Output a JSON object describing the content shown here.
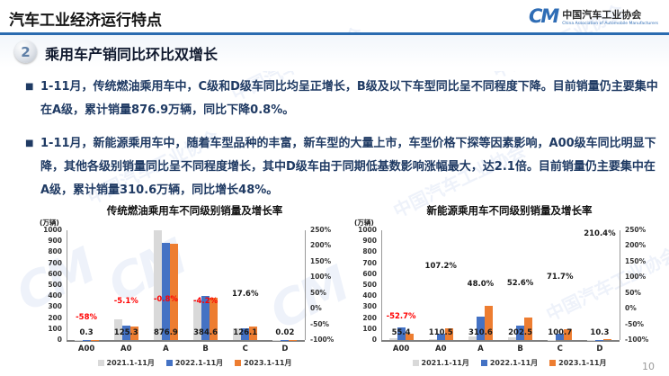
{
  "header": {
    "title": "汽车工业经济运行特点",
    "logo": {
      "mark": "CM",
      "name_cn": "中国汽车工业协会",
      "name_en": "China Association of Automobile Manufacturers"
    }
  },
  "watermark_text": "中国汽车工业协会",
  "section": {
    "number": "2",
    "title": "乘用车产销同比环比双增长"
  },
  "bullet_marker": "■",
  "bullets": [
    {
      "text": "1-11月，传统燃油乘用车中，C级和D级车同比均呈正增长，B级及以下车型同比呈不同程度下降。目前销量仍主要集中在A级，累计销量876.9万辆，同比下降0.8%。"
    },
    {
      "text": "1-11月，新能源乘用车中，随着车型品种的丰富，新车型的大量上市，车型价格下探等因素影响，A00级车同比明显下降，其他各级别销量同比呈不同程度增长，其中D级车由于同期低基数影响涨幅最大，达2.1倍。目前销量仍主要集中在A级，累计销量310.6万辆，同比增长48%。"
    }
  ],
  "page_number": "10",
  "colors": {
    "accent_blue": "#2a6bb0",
    "bar_gray": "#d9d9d9",
    "bar_blue": "#4472c4",
    "bar_orange": "#ed7d31",
    "negative_red": "#ff0000"
  },
  "chart_data": [
    {
      "type": "bar",
      "title": "传统燃油乘用车不同级别销量及增长率",
      "unit": "(万辆)",
      "categories": [
        "A00",
        "A0",
        "A",
        "B",
        "C",
        "D"
      ],
      "series": [
        {
          "name": "2021.1-11月",
          "color": "#d9d9d9",
          "values": [
            1,
            185,
            1000,
            365,
            108,
            0.02
          ]
        },
        {
          "name": "2022.1-11月",
          "color": "#4472c4",
          "values": [
            0.7,
            132,
            884,
            401,
            107,
            0.01
          ]
        },
        {
          "name": "2023.1-11月",
          "color": "#ed7d31",
          "values": [
            0.3,
            125.3,
            876.9,
            384.6,
            126.1,
            0.02
          ]
        }
      ],
      "value_labels": [
        "0.3",
        "125.3",
        "876.9",
        "384.6",
        "126.1",
        "0.02"
      ],
      "growth_labels": [
        "-58%",
        "-5.1%",
        "-0.8%",
        "-4.2%",
        "17.6%",
        ""
      ],
      "growth_values": [
        -58,
        -5.1,
        -0.8,
        -4.2,
        17.6,
        null
      ],
      "y_left": {
        "min": 0,
        "max": 1000,
        "step": 100
      },
      "y_right": {
        "min": -100,
        "max": 250,
        "step": 50,
        "suffix": "%"
      },
      "legend_position": "bottom"
    },
    {
      "type": "bar",
      "title": "新能源乘用车不同级别销量及增长率",
      "unit": "(万辆)",
      "categories": [
        "A00",
        "A0",
        "A",
        "B",
        "C",
        "D"
      ],
      "series": [
        {
          "name": "2021.1-11月",
          "color": "#d9d9d9",
          "values": [
            20,
            8,
            30,
            25,
            4,
            0.3
          ]
        },
        {
          "name": "2022.1-11月",
          "color": "#4472c4",
          "values": [
            117.2,
            53.3,
            209.9,
            132.7,
            58.6,
            3.3
          ]
        },
        {
          "name": "2023.1-11月",
          "color": "#ed7d31",
          "values": [
            55.4,
            110.5,
            310.6,
            202.5,
            100.7,
            10.3
          ]
        }
      ],
      "value_labels": [
        "55.4",
        "110.5",
        "310.6",
        "202.5",
        "100.7",
        "10.3"
      ],
      "growth_labels": [
        "-52.7%",
        "107.2%",
        "48.0%",
        "52.6%",
        "71.7%",
        "210.4%"
      ],
      "growth_values": [
        -52.7,
        107.2,
        48.0,
        52.6,
        71.7,
        210.4
      ],
      "y_left": {
        "min": 0,
        "max": 1000,
        "step": 100
      },
      "y_right": {
        "min": -100,
        "max": 250,
        "step": 50,
        "suffix": "%"
      },
      "legend_position": "bottom"
    }
  ]
}
